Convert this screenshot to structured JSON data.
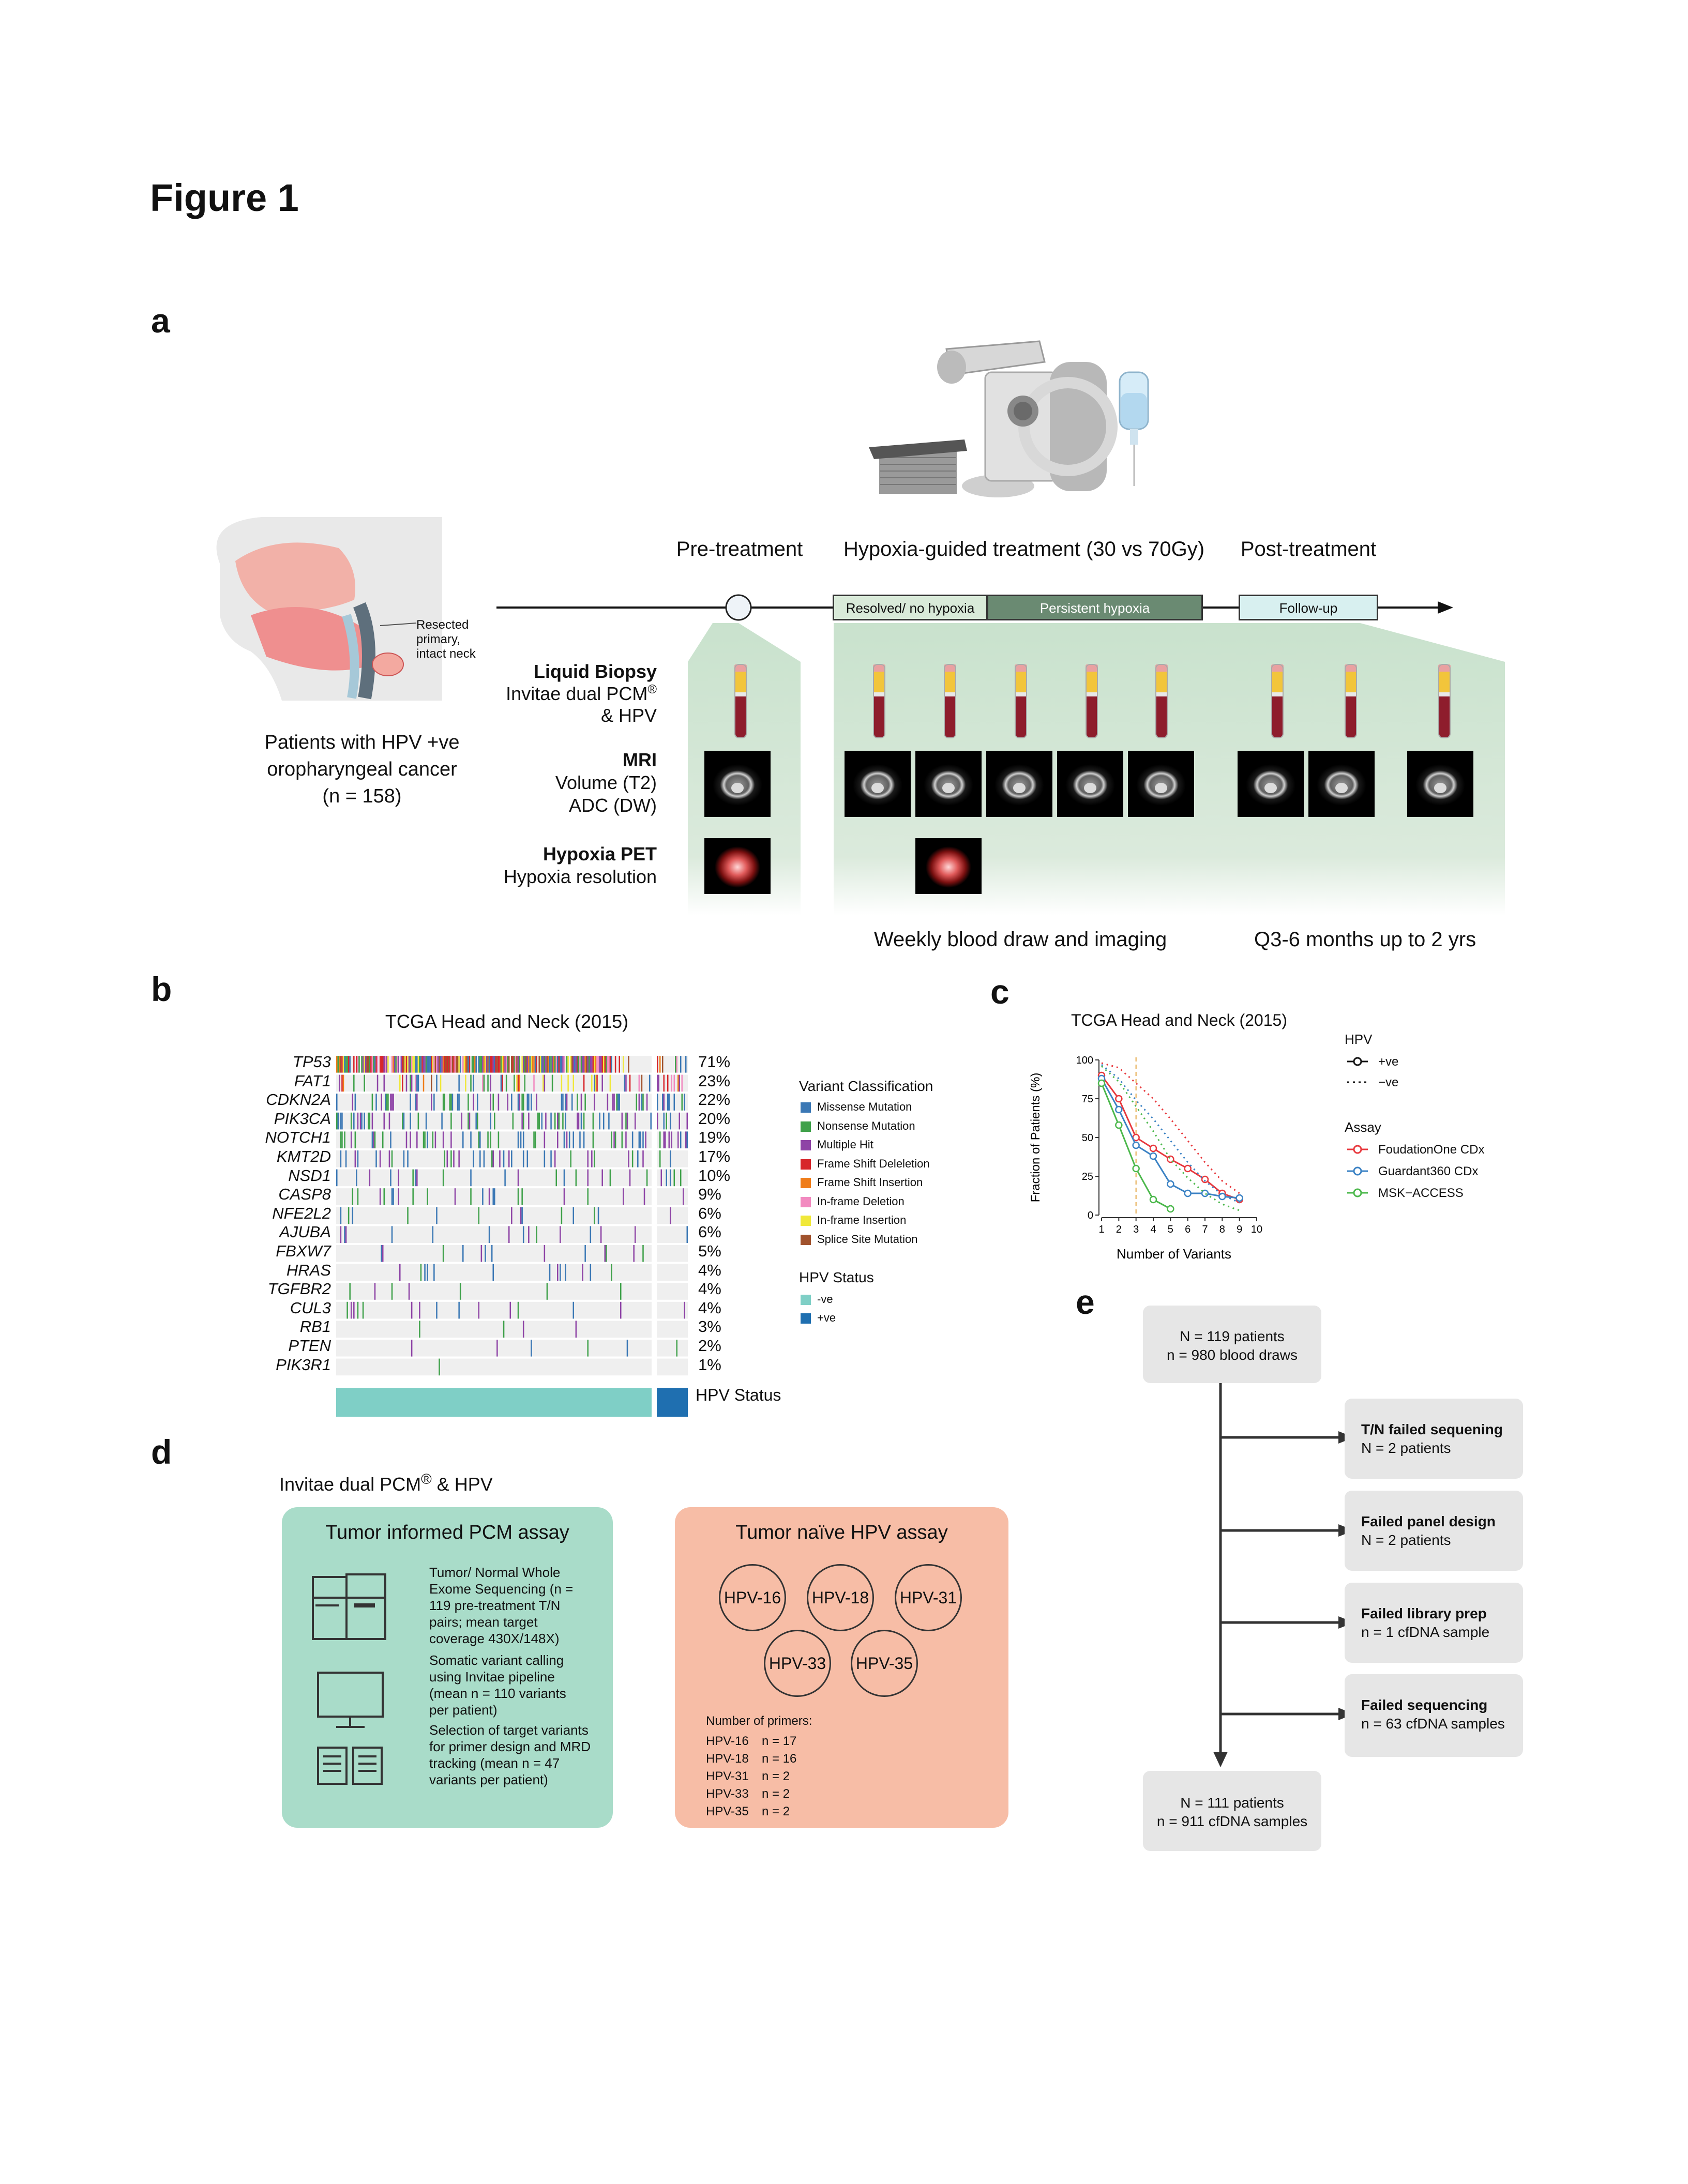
{
  "figure_title": "Figure 1",
  "panels": {
    "a": "a",
    "b": "b",
    "c": "c",
    "d": "d",
    "e": "e"
  },
  "panel_a": {
    "anatomy_label": [
      "Resected",
      "primary,",
      "intact neck"
    ],
    "patients_text": [
      "Patients with HPV +ve",
      "oropharyngeal cancer",
      "(n = 158)"
    ],
    "phase_pre": "Pre-treatment",
    "phase_treatment": "Hypoxia-guided treatment (30 vs 70Gy)",
    "phase_post": "Post-treatment",
    "bar_resolved": "Resolved/ no hypoxia",
    "bar_persistent": "Persistent hypoxia",
    "bar_followup": "Follow-up",
    "row_liquid_title": "Liquid Biopsy",
    "row_liquid_line1": "Invitae dual PCM",
    "row_liquid_reg": "®",
    "row_liquid_line2": "& HPV",
    "row_mri_title": "MRI",
    "row_mri_line1": "Volume (T2)",
    "row_mri_line2": "ADC (DW)",
    "row_pet_title": "Hypoxia PET",
    "row_pet_line1": "Hypoxia resolution",
    "caption_weekly": "Weekly blood draw and imaging",
    "caption_q36": "Q3-6 months up to 2 yrs",
    "colors": {
      "green_band": "#cfe4d2",
      "resolved_bar": "#d9ead9",
      "persistent_bar": "#6a8a72",
      "followup_bar": "#d8f0f0",
      "tube_red": "#8e1d2c",
      "tube_yellow": "#f2c53b"
    }
  },
  "panel_b": {
    "title": "TCGA Head and Neck (2015)",
    "genes": [
      "TP53",
      "FAT1",
      "CDKN2A",
      "PIK3CA",
      "NOTCH1",
      "KMT2D",
      "NSD1",
      "CASP8",
      "NFE2L2",
      "AJUBA",
      "FBXW7",
      "HRAS",
      "TGFBR2",
      "CUL3",
      "RB1",
      "PTEN",
      "PIK3R1"
    ],
    "percentages": [
      "71%",
      "23%",
      "22%",
      "20%",
      "19%",
      "17%",
      "10%",
      "9%",
      "6%",
      "6%",
      "5%",
      "4%",
      "4%",
      "4%",
      "3%",
      "2%",
      "1%"
    ],
    "legend_title": "Variant Classification",
    "legend_items": [
      {
        "label": "Missense Mutation",
        "color": "#3b78b5"
      },
      {
        "label": "Nonsense Mutation",
        "color": "#3fa14a"
      },
      {
        "label": "Multiple Hit",
        "color": "#8e44a6"
      },
      {
        "label": "Frame Shift Deleletion",
        "color": "#d7262b"
      },
      {
        "label": "Frame Shift Insertion",
        "color": "#ef7d1a"
      },
      {
        "label": "In-frame Deletion",
        "color": "#f28ac0"
      },
      {
        "label": "In-frame Insertion",
        "color": "#f0e83a"
      },
      {
        "label": "Splice Site Mutation",
        "color": "#a0522d"
      }
    ],
    "hpv_title": "HPV Status",
    "hpv_items": [
      {
        "label": "-ve",
        "color": "#7fcfc6"
      },
      {
        "label": "+ve",
        "color": "#1f6fb0"
      }
    ],
    "hpv_bar_label": "HPV Status"
  },
  "panel_c": {
    "title": "TCGA Head and Neck (2015)",
    "ylabel": "Fraction of Patients (%)",
    "xlabel": "Number of Variants",
    "legend_hpv_title": "HPV",
    "legend_hpv_items": [
      "+ve",
      "−ve"
    ],
    "legend_assay_title": "Assay",
    "legend_assay_items": [
      "FoudationOne CDx",
      "Guardant360 CDx",
      "MSK−ACCESS"
    ]
  },
  "chart_data": {
    "type": "line",
    "title": "TCGA Head and Neck (2015)",
    "xlabel": "Number of Variants",
    "ylabel": "Fraction of Patients (%)",
    "xlim": [
      1,
      10
    ],
    "ylim": [
      0,
      100
    ],
    "x_ticks": [
      1,
      2,
      3,
      4,
      5,
      6,
      7,
      8,
      9,
      10
    ],
    "y_ticks": [
      0,
      25,
      50,
      75,
      100
    ],
    "vline_x": 3,
    "series": [
      {
        "name": "FoudationOne CDx",
        "hpv": "+ve",
        "color": "#e8383d",
        "dashed": false,
        "x": [
          1,
          2,
          3,
          4,
          5,
          6,
          7,
          8,
          9
        ],
        "values": [
          90,
          75,
          50,
          43,
          36,
          30,
          23,
          14,
          10
        ]
      },
      {
        "name": "Guardant360 CDx",
        "hpv": "+ve",
        "color": "#3b82c4",
        "dashed": false,
        "x": [
          1,
          2,
          3,
          4,
          5,
          6,
          7,
          8,
          9
        ],
        "values": [
          88,
          68,
          45,
          38,
          20,
          14,
          14,
          12,
          11
        ]
      },
      {
        "name": "MSK−ACCESS",
        "hpv": "+ve",
        "color": "#4cb84c",
        "dashed": false,
        "x": [
          1,
          2,
          3,
          4,
          5
        ],
        "values": [
          85,
          58,
          30,
          10,
          4
        ]
      },
      {
        "name": "FoudationOne CDx",
        "hpv": "−ve",
        "color": "#e8383d",
        "dashed": true,
        "x": [
          1,
          2,
          3,
          4,
          5,
          6,
          7,
          8,
          9
        ],
        "values": [
          98,
          95,
          85,
          75,
          62,
          48,
          34,
          22,
          14
        ]
      },
      {
        "name": "Guardant360 CDx",
        "hpv": "−ve",
        "color": "#3b82c4",
        "dashed": true,
        "x": [
          1,
          2,
          3,
          4,
          5,
          6,
          7,
          8,
          9
        ],
        "values": [
          97,
          88,
          74,
          62,
          48,
          34,
          22,
          13,
          8
        ]
      },
      {
        "name": "MSK−ACCESS",
        "hpv": "−ve",
        "color": "#4cb84c",
        "dashed": true,
        "x": [
          1,
          2,
          3,
          4,
          5,
          6,
          7,
          8,
          9
        ],
        "values": [
          96,
          86,
          70,
          54,
          36,
          24,
          14,
          7,
          3
        ]
      }
    ]
  },
  "panel_d": {
    "title_main": "Invitae dual PCM",
    "title_reg": "®",
    "title_rest": " & HPV",
    "pcm_box_title": "Tumor informed PCM assay",
    "pcm_steps": [
      "Tumor/ Normal Whole Exome Sequencing (n = 119 pre-treatment T/N pairs; mean target coverage 430X/148X)",
      "Somatic variant calling using Invitae pipeline (mean n = 110 variants per patient)",
      "Selection of target variants for primer design and MRD tracking (mean n = 47 variants per patient)"
    ],
    "hpv_box_title": "Tumor naïve HPV assay",
    "hpv_types": [
      "HPV-16",
      "HPV-18",
      "HPV-31",
      "HPV-33",
      "HPV-35"
    ],
    "primers_title": "Number of primers:",
    "primers": [
      {
        "type": "HPV-16",
        "n": "n = 17"
      },
      {
        "type": "HPV-18",
        "n": "n = 16"
      },
      {
        "type": "HPV-31",
        "n": "n = 2"
      },
      {
        "type": "HPV-33",
        "n": "n = 2"
      },
      {
        "type": "HPV-35",
        "n": "n = 2"
      }
    ],
    "colors": {
      "pcm_box": "#a9dcc9",
      "hpv_box": "#f7bda6"
    }
  },
  "panel_e": {
    "start": [
      "N = 119 patients",
      "n = 980 blood draws"
    ],
    "excl1_title": "T/N failed sequening",
    "excl1_n": "N = 2 patients",
    "excl2_title": "Failed panel design",
    "excl2_n": "N = 2 patients",
    "excl3_title": "Failed library prep",
    "excl3_n": "n = 1 cfDNA sample",
    "excl4_title": "Failed sequencing",
    "excl4_n": "n = 63 cfDNA samples",
    "end": [
      "N = 111 patients",
      "n = 911 cfDNA samples"
    ]
  }
}
